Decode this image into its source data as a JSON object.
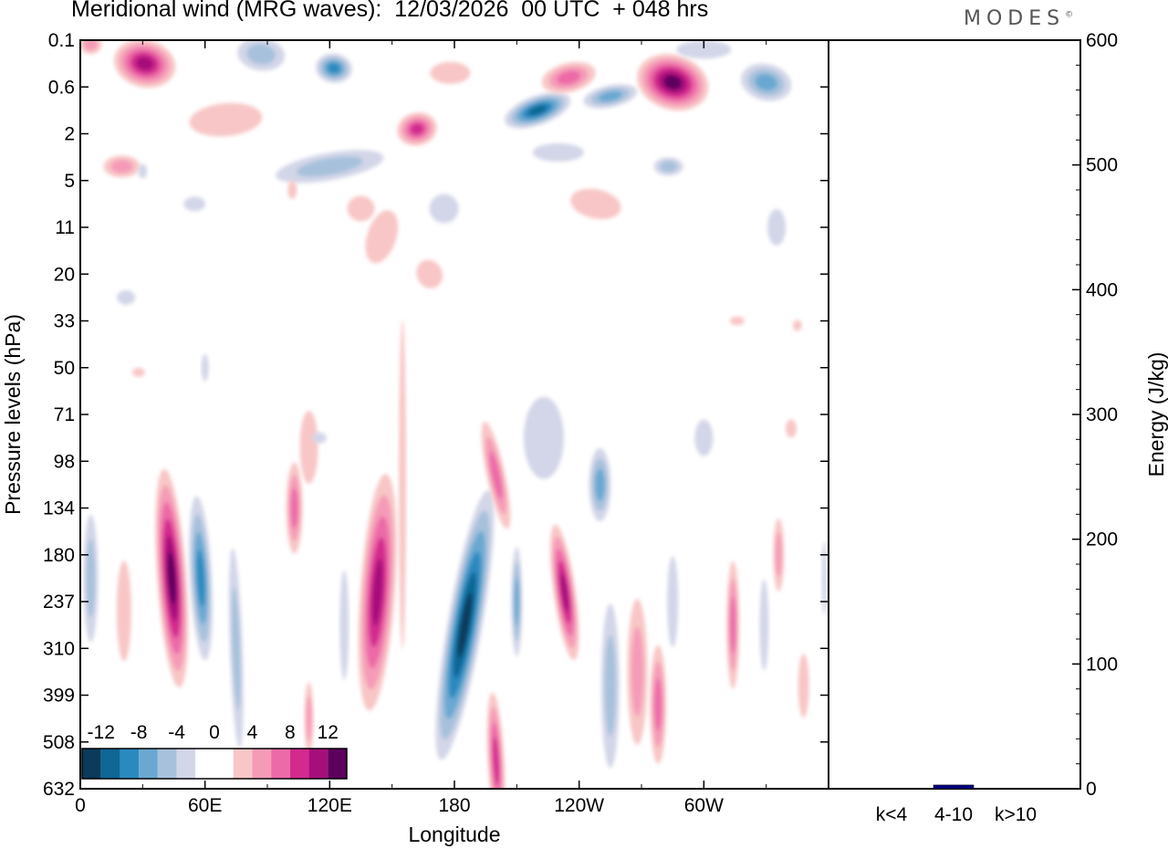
{
  "header": {
    "title": "Meridional wind (MRG waves):  12/03/2026  00 UTC  + 048 hrs",
    "brand": "MODES",
    "brand_mark": "©"
  },
  "chart_data": [
    {
      "type": "contour",
      "title": "Meridional wind (MRG waves):  12/03/2026  00 UTC  + 048 hrs",
      "xlabel": "Longitude",
      "ylabel": "Pressure levels (hPa)",
      "x_ticks": [
        "0",
        "60E",
        "120E",
        "180",
        "120W",
        "60W"
      ],
      "x_tick_degrees": [
        0,
        60,
        120,
        180,
        240,
        300
      ],
      "xlim": [
        0,
        360
      ],
      "y_ticks": [
        "0.1",
        "0.6",
        "2",
        "5",
        "11",
        "20",
        "33",
        "50",
        "71",
        "98",
        "134",
        "180",
        "237",
        "310",
        "399",
        "508",
        "632"
      ],
      "y_axis": "pressure levels (top to bottom)",
      "colorbar": {
        "levels": [
          -12,
          -8,
          -4,
          0,
          4,
          8,
          12
        ],
        "labels": [
          "-12",
          "-8",
          "-4",
          "0",
          "4",
          "8",
          "12"
        ],
        "colors": [
          "#0b3a5b",
          "#0e6795",
          "#2a8ac0",
          "#6aa8d1",
          "#a7c1dc",
          "#d3d6e8",
          "#ffffff",
          "#ffffff",
          "#f8c6c6",
          "#f59bb8",
          "#ec6aa7",
          "#d32a8e",
          "#a60f7a",
          "#5c005e"
        ]
      },
      "features": [
        {
          "sign": "negative",
          "lon": 190,
          "level": "134-237",
          "peak": -14
        },
        {
          "sign": "negative",
          "lon": 220,
          "level": "0.6-2",
          "peak": -10
        },
        {
          "sign": "negative",
          "lon": 60,
          "level": "98-310",
          "peak": -9
        },
        {
          "sign": "negative",
          "lon": 5,
          "level": "134-310",
          "peak": -6
        },
        {
          "sign": "positive",
          "lon": 45,
          "level": "134-399",
          "peak": 14
        },
        {
          "sign": "positive",
          "lon": 140,
          "level": "134-310",
          "peak": 11
        },
        {
          "sign": "positive",
          "lon": 235,
          "level": "134-310",
          "peak": 11
        },
        {
          "sign": "positive",
          "lon": 290,
          "level": "0.1-0.6",
          "peak": 14
        },
        {
          "sign": "positive",
          "lon": 35,
          "level": "0.1-0.6",
          "peak": 10
        },
        {
          "sign": "positive",
          "lon": 195,
          "level": "399-632",
          "peak": 10
        }
      ]
    },
    {
      "type": "bar",
      "title": "",
      "categories": [
        "k<4",
        "4-10",
        "k>10"
      ],
      "values": [
        0.5,
        3,
        0.3
      ],
      "ylabel": "Energy (J/kg)",
      "ylim": [
        0,
        600
      ],
      "y_ticks": [
        "0",
        "100",
        "200",
        "300",
        "400",
        "500",
        "600"
      ],
      "colors": [
        "#000080",
        "#000080",
        "#000080"
      ]
    }
  ]
}
